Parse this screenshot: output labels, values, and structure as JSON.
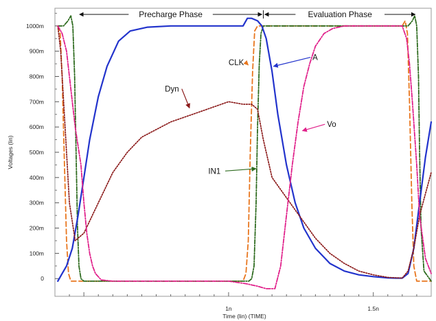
{
  "chart_data": {
    "type": "line",
    "xlabel": "Time (lin) (TIME)",
    "ylabel": "Voltages (lin)",
    "xlim": [
      0.4,
      1.7
    ],
    "ylim": [
      -0.07,
      1.07
    ],
    "x_ticks": [
      {
        "value": 1.0,
        "label": "1n"
      },
      {
        "value": 1.5,
        "label": "1.5n"
      }
    ],
    "y_ticks": [
      {
        "value": 0.0,
        "label": "0"
      },
      {
        "value": 0.1,
        "label": "100m"
      },
      {
        "value": 0.2,
        "label": "200m"
      },
      {
        "value": 0.3,
        "label": "300m"
      },
      {
        "value": 0.4,
        "label": "400m"
      },
      {
        "value": 0.5,
        "label": "500m"
      },
      {
        "value": 0.6,
        "label": "600m"
      },
      {
        "value": 0.7,
        "label": "700m"
      },
      {
        "value": 0.8,
        "label": "800m"
      },
      {
        "value": 0.9,
        "label": "900m"
      },
      {
        "value": 1.0,
        "label": "1000m"
      }
    ],
    "grid": false,
    "legend": "none",
    "phases": [
      {
        "label": "Precharge Phase",
        "x_start": 0.48,
        "x_end": 1.12
      },
      {
        "label": "Evaluation Phase",
        "x_start": 1.12,
        "x_end": 1.65
      }
    ],
    "series": [
      {
        "name": "CLK",
        "color": "#e8761e",
        "dash": "7,4",
        "width": 1.8,
        "x": [
          0.41,
          0.418,
          0.425,
          0.433,
          0.44,
          0.447,
          0.455,
          1.05,
          1.06,
          1.068,
          1.075,
          1.083,
          1.09,
          1.1,
          1.11,
          1.6,
          1.61,
          1.618,
          1.625,
          1.633,
          1.64,
          1.65,
          1.7
        ],
        "y": [
          1.0,
          0.97,
          0.8,
          0.45,
          0.15,
          0.02,
          -0.01,
          -0.01,
          0.02,
          0.15,
          0.5,
          0.82,
          0.98,
          1.0,
          1.0,
          1.0,
          1.02,
          0.97,
          0.7,
          0.3,
          0.05,
          -0.01,
          -0.01
        ]
      },
      {
        "name": "IN1",
        "color": "#2e6b1f",
        "dash": "6,2,1.5,2",
        "width": 1.8,
        "x": [
          0.41,
          0.43,
          0.445,
          0.455,
          0.462,
          0.468,
          0.473,
          0.478,
          0.483,
          0.49,
          0.5,
          1.07,
          1.08,
          1.088,
          1.095,
          1.1,
          1.106,
          1.112,
          1.12,
          1.13,
          1.6,
          1.62,
          1.635,
          1.643,
          1.65,
          1.656,
          1.66,
          1.665,
          1.675,
          1.7
        ],
        "y": [
          1.0,
          1.0,
          1.02,
          1.04,
          1.0,
          0.8,
          0.5,
          0.2,
          0.05,
          0.0,
          -0.01,
          -0.01,
          0.0,
          0.05,
          0.3,
          0.6,
          0.85,
          0.97,
          1.0,
          1.0,
          1.0,
          1.0,
          1.02,
          1.04,
          1.0,
          0.8,
          0.5,
          0.2,
          0.03,
          -0.01
        ]
      },
      {
        "name": "A",
        "color": "#2233cc",
        "dash": "",
        "width": 2.2,
        "x": [
          0.41,
          0.425,
          0.44,
          0.46,
          0.48,
          0.5,
          0.52,
          0.55,
          0.58,
          0.62,
          0.66,
          0.72,
          0.8,
          0.9,
          1.0,
          1.05,
          1.065,
          1.08,
          1.1,
          1.115,
          1.13,
          1.15,
          1.17,
          1.2,
          1.23,
          1.26,
          1.3,
          1.35,
          1.4,
          1.45,
          1.5,
          1.55,
          1.58,
          1.6,
          1.62,
          1.64,
          1.66,
          1.68,
          1.7
        ],
        "y": [
          -0.01,
          0.02,
          0.05,
          0.12,
          0.25,
          0.4,
          0.55,
          0.72,
          0.84,
          0.94,
          0.98,
          0.995,
          1.0,
          1.0,
          1.0,
          1.0,
          1.03,
          1.03,
          1.02,
          1.0,
          0.95,
          0.82,
          0.65,
          0.45,
          0.3,
          0.2,
          0.12,
          0.06,
          0.03,
          0.015,
          0.008,
          0.003,
          0.002,
          0.002,
          0.02,
          0.12,
          0.3,
          0.48,
          0.62
        ]
      },
      {
        "name": "Dyn",
        "color": "#8b1a1a",
        "dash": "1.6,2",
        "width": 1.7,
        "x": [
          0.41,
          0.42,
          0.435,
          0.45,
          0.47,
          0.5,
          0.55,
          0.6,
          0.65,
          0.7,
          0.8,
          0.9,
          0.95,
          1.0,
          1.05,
          1.08,
          1.1,
          1.12,
          1.15,
          1.2,
          1.25,
          1.3,
          1.35,
          1.4,
          1.45,
          1.5,
          1.55,
          1.6,
          1.62,
          1.64,
          1.66,
          1.7
        ],
        "y": [
          1.0,
          0.9,
          0.6,
          0.3,
          0.15,
          0.18,
          0.3,
          0.42,
          0.5,
          0.56,
          0.62,
          0.66,
          0.68,
          0.7,
          0.69,
          0.69,
          0.67,
          0.55,
          0.4,
          0.32,
          0.24,
          0.16,
          0.1,
          0.06,
          0.03,
          0.015,
          0.005,
          0.002,
          0.03,
          0.12,
          0.25,
          0.42
        ]
      },
      {
        "name": "Vo",
        "color": "#e0208a",
        "dash": "6,2,1.5,2",
        "width": 1.8,
        "x": [
          0.41,
          0.425,
          0.44,
          0.455,
          0.47,
          0.49,
          0.5,
          0.51,
          0.52,
          0.53,
          0.54,
          0.56,
          0.6,
          0.8,
          1.0,
          1.06,
          1.1,
          1.13,
          1.16,
          1.18,
          1.2,
          1.22,
          1.24,
          1.26,
          1.28,
          1.3,
          1.33,
          1.36,
          1.4,
          1.5,
          1.6,
          1.615,
          1.625,
          1.635,
          1.65,
          1.66,
          1.68,
          1.7
        ],
        "y": [
          1.0,
          0.97,
          0.9,
          0.75,
          0.6,
          0.45,
          0.3,
          0.18,
          0.1,
          0.05,
          0.02,
          -0.005,
          -0.01,
          -0.01,
          -0.01,
          -0.02,
          -0.03,
          -0.04,
          -0.04,
          0.05,
          0.25,
          0.45,
          0.62,
          0.76,
          0.85,
          0.92,
          0.97,
          0.99,
          1.0,
          1.0,
          1.0,
          0.95,
          0.85,
          0.7,
          0.45,
          0.25,
          0.08,
          0.02
        ]
      }
    ],
    "annotations": [
      {
        "label": "CLK",
        "series": "CLK",
        "text_x": 1.0,
        "text_y": 0.845,
        "arrow_to_x": 1.068,
        "arrow_to_y": 0.845
      },
      {
        "label": "A",
        "series": "A",
        "text_x": 1.29,
        "text_y": 0.865,
        "arrow_to_x": 1.155,
        "arrow_to_y": 0.84
      },
      {
        "label": "Dyn",
        "series": "Dyn",
        "text_x": 0.78,
        "text_y": 0.74,
        "arrow_to_x": 0.865,
        "arrow_to_y": 0.675
      },
      {
        "label": "Vo",
        "series": "Vo",
        "text_x": 1.34,
        "text_y": 0.6,
        "arrow_to_x": 1.255,
        "arrow_to_y": 0.585
      },
      {
        "label": "IN1",
        "series": "IN1",
        "text_x": 0.93,
        "text_y": 0.415,
        "arrow_to_x": 1.095,
        "arrow_to_y": 0.435
      }
    ]
  }
}
